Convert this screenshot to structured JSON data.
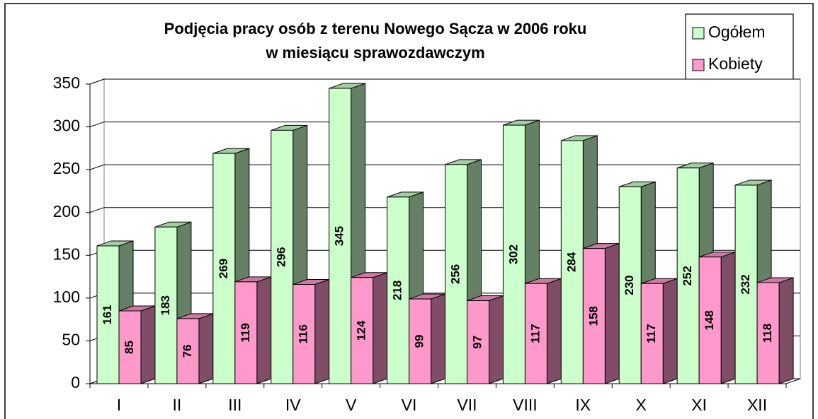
{
  "chart_data": {
    "type": "bar",
    "title": [
      "Podjęcia pracy osób z terenu Nowego Sącza w 2006 roku",
      "w miesiącu sprawozdawczym"
    ],
    "categories": [
      "I",
      "II",
      "III",
      "IV",
      "V",
      "VI",
      "VII",
      "VIII",
      "IX",
      "X",
      "XI",
      "XII"
    ],
    "series": [
      {
        "name": "Ogółem",
        "color": "#ccffcc",
        "values": [
          161,
          183,
          269,
          296,
          345,
          218,
          256,
          302,
          284,
          230,
          252,
          232
        ]
      },
      {
        "name": "Kobiety",
        "color": "#ff99cc",
        "values": [
          85,
          76,
          119,
          116,
          124,
          99,
          97,
          117,
          158,
          117,
          148,
          118
        ]
      }
    ],
    "ylim": [
      0,
      350
    ],
    "yticks": [
      0,
      50,
      100,
      150,
      200,
      250,
      300,
      350
    ],
    "grid": true,
    "legend": "top-right"
  }
}
